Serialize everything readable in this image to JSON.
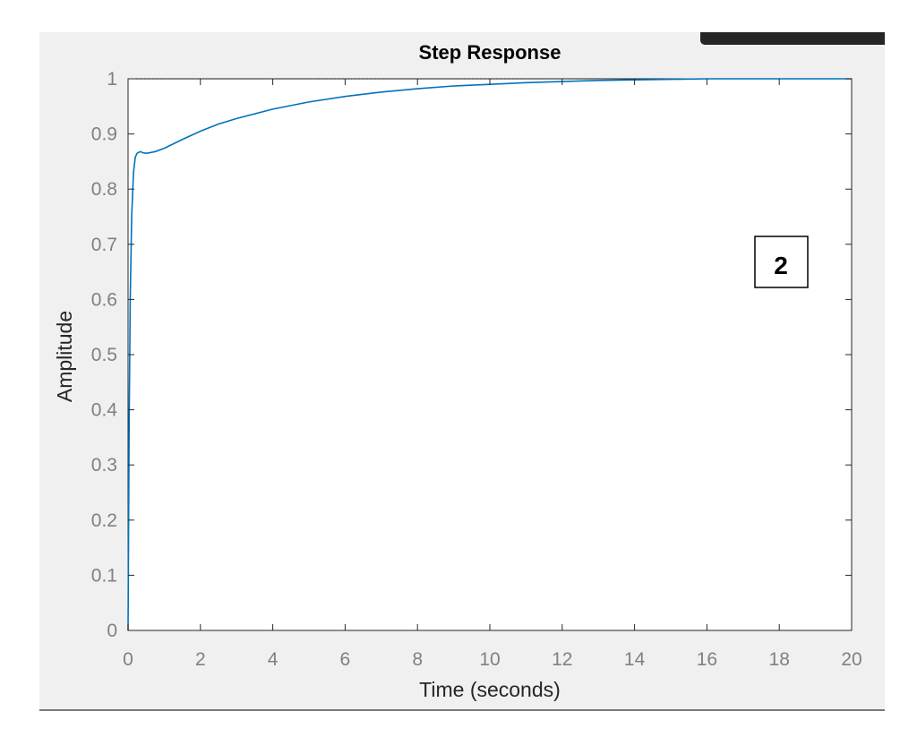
{
  "chart_data": {
    "type": "line",
    "title": "Step Response",
    "xlabel": "Time (seconds)",
    "ylabel": "Amplitude",
    "xlim": [
      0,
      20
    ],
    "ylim": [
      0,
      1
    ],
    "xticks": [
      0,
      2,
      4,
      6,
      8,
      10,
      12,
      14,
      16,
      18,
      20
    ],
    "yticks": [
      0,
      0.1,
      0.2,
      0.3,
      0.4,
      0.5,
      0.6,
      0.7,
      0.8,
      0.9,
      1
    ],
    "grid": false,
    "series": [
      {
        "color": "#0072bd",
        "x": [
          0,
          0.03,
          0.06,
          0.1,
          0.15,
          0.2,
          0.25,
          0.3,
          0.35,
          0.4,
          0.5,
          0.6,
          0.75,
          1,
          1.5,
          2,
          2.5,
          3,
          4,
          5,
          6,
          7,
          8,
          9,
          10,
          11,
          12,
          13,
          14,
          15,
          16,
          18,
          20
        ],
        "y": [
          0,
          0.37,
          0.6,
          0.75,
          0.83,
          0.858,
          0.865,
          0.867,
          0.868,
          0.866,
          0.865,
          0.866,
          0.868,
          0.874,
          0.89,
          0.905,
          0.918,
          0.928,
          0.945,
          0.958,
          0.968,
          0.976,
          0.982,
          0.987,
          0.99,
          0.993,
          0.995,
          0.997,
          0.998,
          0.999,
          1.0,
          1.0,
          1.0
        ]
      }
    ],
    "reference_line": 1,
    "annotation": "2"
  }
}
